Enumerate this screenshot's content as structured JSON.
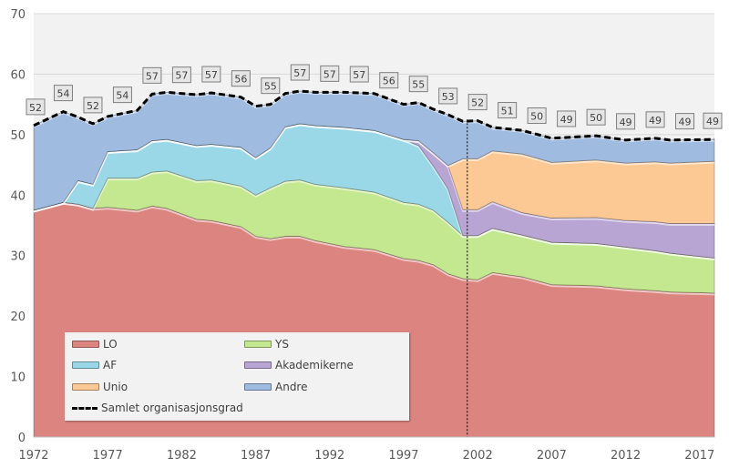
{
  "chart_data": {
    "type": "area",
    "stacked": true,
    "title": "",
    "xlabel": "",
    "ylabel": "",
    "xlim": [
      1972,
      2018
    ],
    "ylim": [
      0,
      70
    ],
    "yticks": [
      "0",
      "10",
      "20",
      "30",
      "40",
      "50",
      "60",
      "70"
    ],
    "xticks": [
      "1972",
      "1977",
      "1982",
      "1987",
      "1992",
      "1997",
      "2002",
      "2007",
      "2012",
      "2017"
    ],
    "grid": true,
    "legend_position": "bottom-left",
    "marker_line_x": 2001.3,
    "x": [
      1972,
      1974,
      1975,
      1976,
      1977,
      1979,
      1980,
      1981,
      1983,
      1984,
      1986,
      1987,
      1988,
      1989,
      1990,
      1991,
      1993,
      1995,
      1997,
      1998,
      1999,
      2000,
      2001,
      2002,
      2003,
      2005,
      2007,
      2010,
      2012,
      2014,
      2015,
      2018
    ],
    "series": [
      {
        "name": "LO",
        "color": "#dc8580",
        "values": [
          37.5,
          38.8,
          38.5,
          37.8,
          38.0,
          37.5,
          38.2,
          37.8,
          36.0,
          35.8,
          34.8,
          33.2,
          32.8,
          33.2,
          33.2,
          32.5,
          31.5,
          31.0,
          29.5,
          29.2,
          28.5,
          27.0,
          26.2,
          26.0,
          27.2,
          26.5,
          25.2,
          25.0,
          24.5,
          24.2,
          24.0,
          23.8
        ]
      },
      {
        "name": "YS",
        "color": "#c3e88f",
        "values": [
          0,
          0,
          0,
          0,
          4.8,
          5.3,
          5.6,
          6.2,
          6.4,
          6.7,
          6.7,
          6.8,
          8.4,
          9.1,
          9.3,
          9.3,
          9.7,
          9.5,
          9.3,
          9.3,
          9.0,
          8.5,
          7.1,
          7.3,
          7.3,
          6.9,
          7.0,
          7.0,
          6.9,
          6.6,
          6.4,
          5.8
        ]
      },
      {
        "name": "AF",
        "color": "#9ad8e8",
        "values": [
          0,
          0,
          3.9,
          4.0,
          4.4,
          4.7,
          5.2,
          5.2,
          5.8,
          5.9,
          6.4,
          6.2,
          6.6,
          9.0,
          9.3,
          9.7,
          10.0,
          10.2,
          10.4,
          9.7,
          7.3,
          5.5,
          0,
          0,
          0,
          0,
          0,
          0,
          0,
          0,
          0,
          0
        ]
      },
      {
        "name": "Akademikerne",
        "color": "#b9a5d4",
        "values": [
          0,
          0,
          0,
          0,
          0,
          0,
          0,
          0,
          0,
          0,
          0,
          0,
          0,
          0,
          0,
          0,
          0,
          0,
          0,
          0.8,
          2.2,
          3.9,
          4.3,
          4.3,
          4.4,
          3.7,
          4.0,
          4.3,
          4.4,
          4.8,
          4.9,
          5.7
        ]
      },
      {
        "name": "Unio",
        "color": "#fcc995",
        "values": [
          0,
          0,
          0,
          0,
          0,
          0,
          0,
          0,
          0,
          0,
          0,
          0,
          0,
          0,
          0,
          0,
          0,
          0,
          0,
          0,
          0,
          0,
          8.4,
          8.4,
          8.4,
          9.7,
          9.2,
          9.5,
          9.5,
          9.9,
          10.0,
          10.3
        ]
      },
      {
        "name": "Andre",
        "color": "#9fbbe0",
        "values": [
          14.0,
          15.0,
          10.5,
          10.0,
          5.8,
          6.5,
          7.7,
          7.8,
          8.4,
          8.5,
          8.3,
          8.5,
          7.2,
          5.5,
          5.4,
          5.5,
          5.8,
          6.1,
          5.8,
          6.3,
          7.2,
          8.4,
          6.2,
          6.3,
          3.9,
          3.9,
          4.0,
          4.0,
          3.8,
          3.9,
          3.8,
          3.6
        ]
      }
    ],
    "total": {
      "name": "Samlet organisasjonsgrad",
      "color": "#000000",
      "label_x": [
        1972,
        1974,
        1976,
        1978,
        1980,
        1982,
        1984,
        1986,
        1988,
        1990,
        1992,
        1994,
        1996,
        1998,
        2000,
        2002,
        2004,
        2006,
        2008,
        2010,
        2012,
        2014,
        2016,
        2018
      ],
      "labels": [
        "52",
        "54",
        "52",
        "54",
        "57",
        "57",
        "57",
        "56",
        "55",
        "57",
        "57",
        "57",
        "56",
        "55",
        "53",
        "52",
        "51",
        "50",
        "49",
        "50",
        "49",
        "49",
        "49",
        "49"
      ]
    }
  },
  "legend": {
    "items": [
      "LO",
      "YS",
      "AF",
      "Akademikerne",
      "Unio",
      "Andre",
      "Samlet organisasjonsgrad"
    ]
  }
}
